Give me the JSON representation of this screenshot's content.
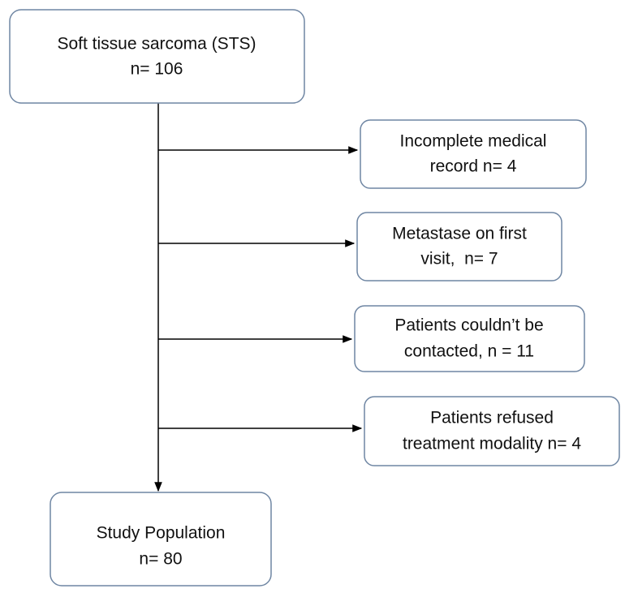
{
  "nodes": [
    {
      "lines": [
        "Soft tissue sarcoma (STS)",
        "n= 106"
      ]
    },
    {
      "lines": [
        "Incomplete medical",
        "record n= 4"
      ]
    },
    {
      "lines": [
        "Metastase on first",
        "visit,  n= 7"
      ]
    },
    {
      "lines": [
        "Patients couldn’t be",
        "contacted, n = 11"
      ]
    },
    {
      "lines": [
        "Patients refused",
        "treatment modality n= 4"
      ]
    },
    {
      "lines": [
        "Study Population",
        "n= 80"
      ]
    }
  ]
}
